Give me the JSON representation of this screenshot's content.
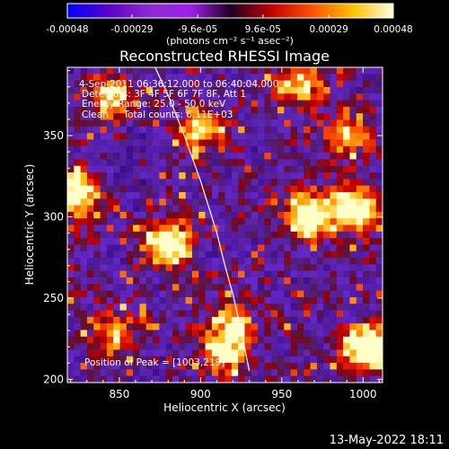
{
  "colorbar": {
    "tick_labels": [
      "-0.00048",
      "-0.00029",
      "-9.6e-05",
      "9.6e-05",
      "0.00029",
      "0.00048"
    ],
    "tick_values": [
      -0.00048,
      -0.00029,
      -9.6e-05,
      9.6e-05,
      0.00029,
      0.00048
    ],
    "range": [
      -0.00048,
      0.00048
    ],
    "units": "(photons cm⁻² s⁻¹ asec⁻²)",
    "colors": [
      "#0000ff",
      "#5a00c8",
      "#8a2bd0",
      "#a020f0",
      "#c00000",
      "#ff2000",
      "#ff8000",
      "#ffd000",
      "#ffffe0"
    ]
  },
  "info": {
    "time_range": "4-Sep-2011 06:36:12.000 to 06:40:04.000",
    "detectors": "Detectors: 3F 4F 5F 6F 7F 8F, Att 1",
    "energy": "Energy Range: 25.0 - 50.0 keV",
    "method": "Clean     Total counts: 6.11E+03",
    "peak": "Position of Peak = [1003,219]"
  },
  "footer": {
    "date": "13-May-2022 18:11"
  },
  "chart_data": {
    "type": "heatmap",
    "title": "Reconstructed RHESSI Image",
    "xlabel": "Heliocentric X (arcsec)",
    "ylabel": "Heliocentric Y (arcsec)",
    "xlim": [
      818,
      1012
    ],
    "ylim": [
      198,
      392
    ],
    "xticks": [
      850,
      900,
      950,
      1000
    ],
    "yticks": [
      200,
      250,
      300,
      350
    ],
    "peak": [
      1003,
      219
    ],
    "limb_curve": {
      "x": [
        872,
        880,
        890,
        900,
        910,
        915,
        920,
        925,
        930
      ],
      "y": [
        392,
        375,
        350,
        322,
        290,
        270,
        252,
        230,
        205
      ]
    },
    "bright_sources": [
      {
        "x": 823,
        "y": 315,
        "level": 0.9
      },
      {
        "x": 880,
        "y": 283,
        "level": 0.95
      },
      {
        "x": 965,
        "y": 302,
        "level": 0.85
      },
      {
        "x": 995,
        "y": 305,
        "level": 0.85
      },
      {
        "x": 1003,
        "y": 219,
        "level": 1.0
      },
      {
        "x": 915,
        "y": 215,
        "level": 0.6
      },
      {
        "x": 920,
        "y": 235,
        "level": 0.6
      },
      {
        "x": 960,
        "y": 380,
        "level": 0.55
      },
      {
        "x": 845,
        "y": 375,
        "level": 0.6
      },
      {
        "x": 900,
        "y": 355,
        "level": 0.55
      },
      {
        "x": 845,
        "y": 230,
        "level": 0.5
      },
      {
        "x": 990,
        "y": 350,
        "level": 0.5
      }
    ]
  }
}
